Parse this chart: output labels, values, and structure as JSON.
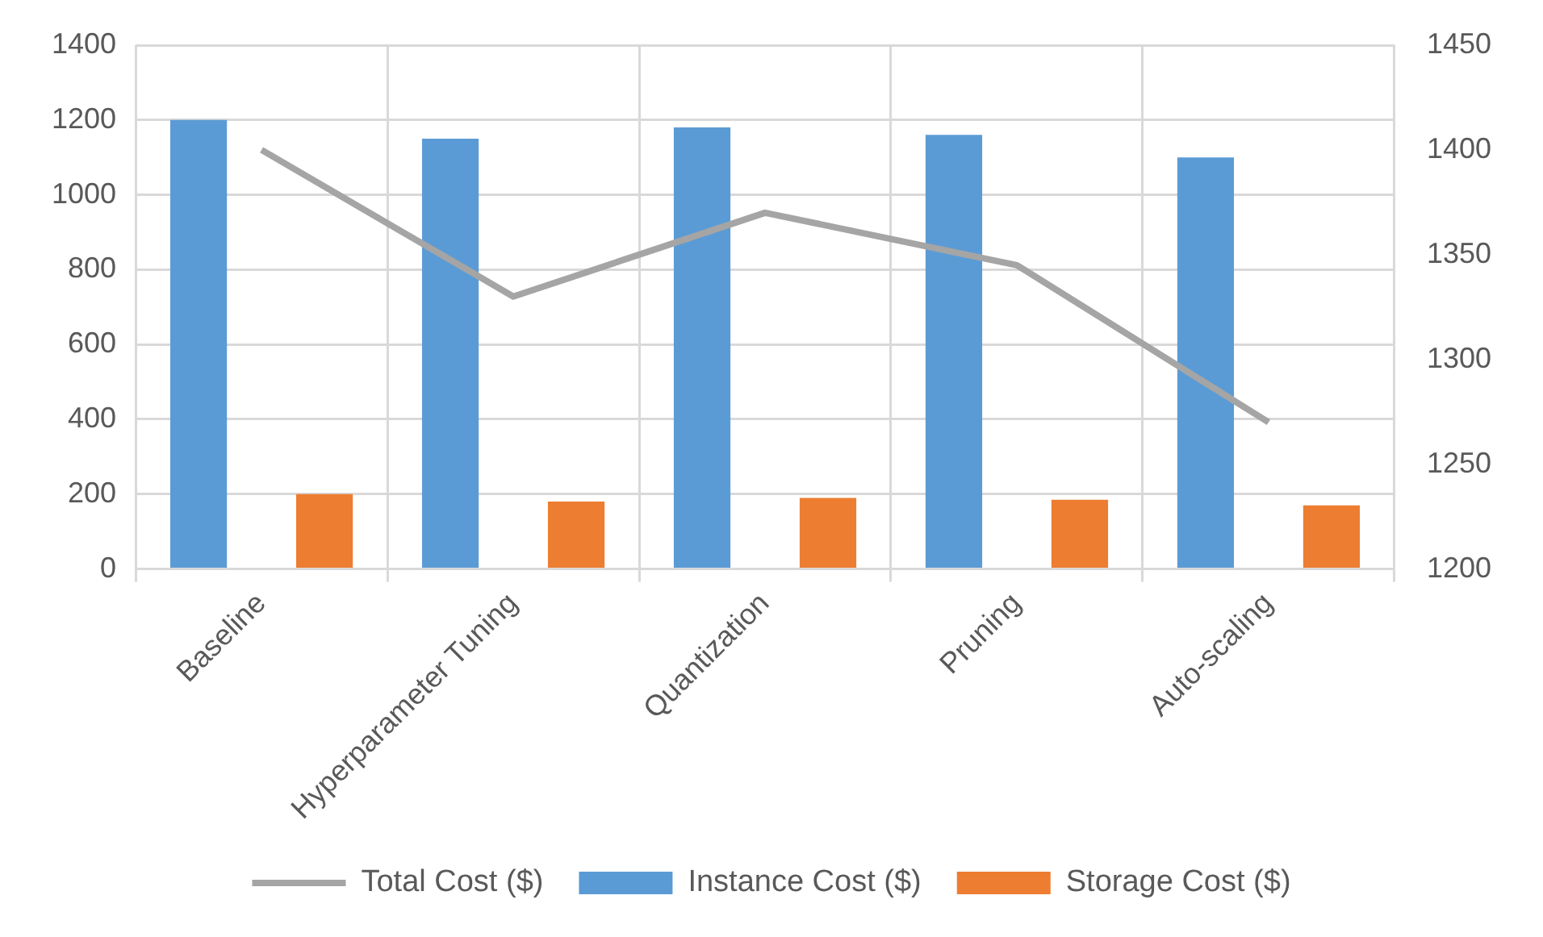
{
  "chart_data": {
    "type": "bar",
    "categories": [
      "Baseline",
      "Hyperparameter Tuning",
      "Quantization",
      "Pruning",
      "Auto-scaling"
    ],
    "series": [
      {
        "name": "Instance Cost ($)",
        "color": "#5b9bd5",
        "values": [
          1200,
          1150,
          1180,
          1160,
          1100
        ]
      },
      {
        "name": "Storage Cost ($)",
        "color": "#ed7d31",
        "values": [
          200,
          180,
          190,
          185,
          170
        ]
      },
      {
        "name": "Total Cost ($)",
        "type": "line",
        "axis": "y2",
        "color": "#a5a5a5",
        "values": [
          1400,
          1330,
          1370,
          1345,
          1270
        ]
      }
    ],
    "ylim": [
      0,
      1400
    ],
    "yticks": [
      0,
      200,
      400,
      600,
      800,
      1000,
      1200,
      1400
    ],
    "y2lim": [
      1200,
      1450
    ],
    "y2ticks": [
      1200,
      1250,
      1300,
      1350,
      1400,
      1450
    ],
    "grid": true,
    "legend": "bottom",
    "marker": "none"
  }
}
